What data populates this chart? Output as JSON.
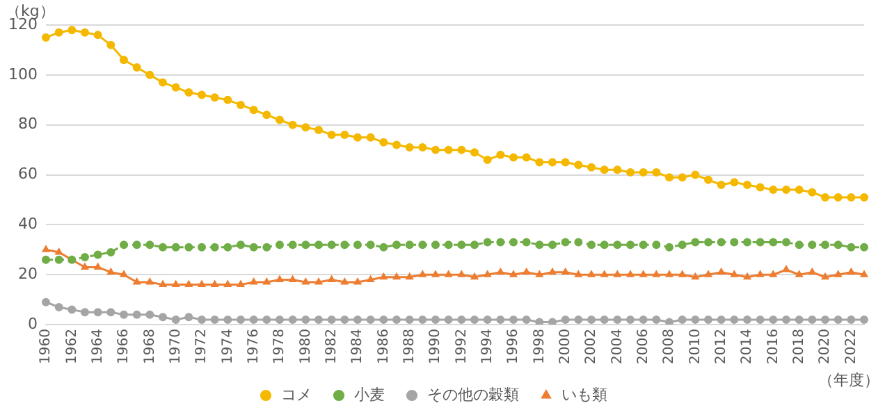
{
  "chart_data": {
    "type": "line",
    "ylabel": "（kg）",
    "xlabel": "（年度）",
    "categories": [
      "1960",
      null,
      "1962",
      null,
      "1964",
      null,
      "1966",
      null,
      "1968",
      null,
      "1970",
      null,
      "1972",
      null,
      "1974",
      null,
      "1976",
      null,
      "1978",
      null,
      "1980",
      null,
      "1982",
      null,
      "1984",
      null,
      "1986",
      null,
      "1988",
      null,
      "1990",
      null,
      "1992",
      null,
      "1994",
      null,
      "1996",
      null,
      "1998",
      null,
      "2000",
      null,
      "2002",
      null,
      "2004",
      null,
      "2006",
      null,
      "2008",
      null,
      "2010",
      null,
      "2012",
      null,
      "2014",
      null,
      "2016",
      null,
      "2018",
      null,
      "2020",
      null,
      "2022",
      null
    ],
    "series": [
      {
        "name": "コメ",
        "color": "#f5b800",
        "marker": "circle",
        "line_style": "solid",
        "values": [
          115,
          117,
          118,
          117,
          116,
          112,
          106,
          103,
          100,
          97,
          95,
          93,
          92,
          91,
          90,
          88,
          86,
          84,
          82,
          80,
          79,
          78,
          76,
          76,
          75,
          75,
          73,
          72,
          71,
          71,
          70,
          70,
          70,
          69,
          66,
          68,
          67,
          67,
          65,
          65,
          65,
          64,
          63,
          62,
          62,
          61,
          61,
          61,
          59,
          59,
          60,
          58,
          56,
          57,
          56,
          55,
          54,
          54,
          54,
          53,
          51,
          51,
          51,
          51
        ]
      },
      {
        "name": "小麦",
        "color": "#70ad47",
        "marker": "circle",
        "line_style": "dashed",
        "values": [
          26,
          26,
          26,
          27,
          28,
          29,
          32,
          32,
          32,
          31,
          31,
          31,
          31,
          31,
          31,
          32,
          31,
          31,
          32,
          32,
          32,
          32,
          32,
          32,
          32,
          32,
          31,
          32,
          32,
          32,
          32,
          32,
          32,
          32,
          33,
          33,
          33,
          33,
          32,
          32,
          33,
          33,
          32,
          32,
          32,
          32,
          32,
          32,
          31,
          32,
          33,
          33,
          33,
          33,
          33,
          33,
          33,
          33,
          32,
          32,
          32,
          32,
          31,
          31
        ]
      },
      {
        "name": "その他の穀類",
        "color": "#a5a5a5",
        "marker": "circle",
        "line_style": "solid",
        "values": [
          9,
          7,
          6,
          5,
          5,
          5,
          4,
          4,
          4,
          3,
          2,
          3,
          2,
          2,
          2,
          2,
          2,
          2,
          2,
          2,
          2,
          2,
          2,
          2,
          2,
          2,
          2,
          2,
          2,
          2,
          2,
          2,
          2,
          2,
          2,
          2,
          2,
          2,
          1,
          1,
          2,
          2,
          2,
          2,
          2,
          2,
          2,
          2,
          1,
          2,
          2,
          2,
          2,
          2,
          2,
          2,
          2,
          2,
          2,
          2,
          2,
          2,
          2,
          2
        ]
      },
      {
        "name": "いも類",
        "color": "#ed7d31",
        "marker": "triangle",
        "line_style": "solid",
        "values": [
          30,
          29,
          26,
          23,
          23,
          21,
          20,
          17,
          17,
          16,
          16,
          16,
          16,
          16,
          16,
          16,
          17,
          17,
          18,
          18,
          17,
          17,
          18,
          17,
          17,
          18,
          19,
          19,
          19,
          20,
          20,
          20,
          20,
          19,
          20,
          21,
          20,
          21,
          20,
          21,
          21,
          20,
          20,
          20,
          20,
          20,
          20,
          20,
          20,
          20,
          19,
          20,
          21,
          20,
          19,
          20,
          20,
          22,
          20,
          21,
          19,
          20,
          21,
          20
        ]
      }
    ],
    "ylim": [
      0,
      120
    ],
    "yticks": [
      0,
      20,
      40,
      60,
      80,
      100,
      120
    ],
    "grid": "y",
    "legend": "bottom"
  }
}
